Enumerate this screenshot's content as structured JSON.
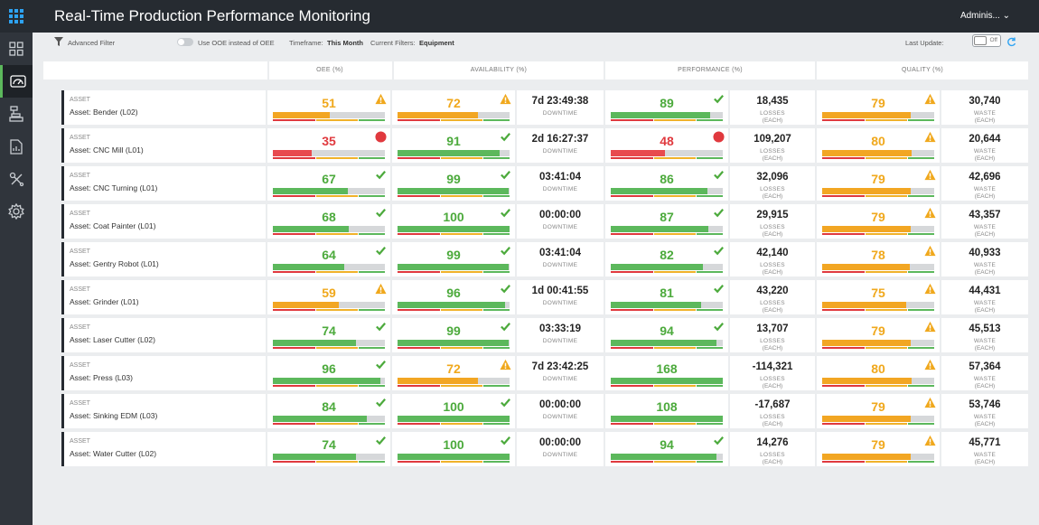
{
  "app": {
    "title": "Real-Time Production Performance Monitoring",
    "user": "Adminis... ⌄"
  },
  "filters": {
    "advanced_filter": "Advanced Filter",
    "ooe_toggle_label": "Use OOE instead of OEE",
    "timeframe_label": "Timeframe:",
    "timeframe_value": "This Month",
    "current_filters_label": "Current Filters:",
    "current_filters_value": "Equipment",
    "last_update_label": "Last Update:",
    "last_update_toggle": "Off"
  },
  "columns": {
    "oee": "OEE (%)",
    "availability": "AVAILABILITY (%)",
    "performance": "PERFORMANCE (%)",
    "quality": "QUALITY (%)"
  },
  "labels": {
    "asset_tag": "ASSET",
    "downtime": "DOWNTIME",
    "losses": "LOSSES",
    "waste": "WASTE",
    "each": "(EACH)"
  },
  "colors": {
    "green": "#5cb85c",
    "orange": "#f2a623",
    "red": "#e84a4f",
    "topbar": "#262b31",
    "active_nav": "#5cb85c"
  },
  "rows": [
    {
      "asset": "Asset: Bender (L02)",
      "oee": {
        "v": "51",
        "s": "warn"
      },
      "avail": {
        "v": "72",
        "s": "warn"
      },
      "downtime": "7d 23:49:38",
      "perf": {
        "v": "89",
        "s": "ok"
      },
      "losses": "18,435",
      "quality": {
        "v": "79",
        "s": "warn"
      },
      "waste": "30,740"
    },
    {
      "asset": "Asset: CNC Mill (L01)",
      "oee": {
        "v": "35",
        "s": "bad"
      },
      "avail": {
        "v": "91",
        "s": "ok"
      },
      "downtime": "2d 16:27:37",
      "perf": {
        "v": "48",
        "s": "bad"
      },
      "losses": "109,207",
      "quality": {
        "v": "80",
        "s": "warn"
      },
      "waste": "20,644"
    },
    {
      "asset": "Asset: CNC Turning (L01)",
      "oee": {
        "v": "67",
        "s": "ok"
      },
      "avail": {
        "v": "99",
        "s": "ok"
      },
      "downtime": "03:41:04",
      "perf": {
        "v": "86",
        "s": "ok"
      },
      "losses": "32,096",
      "quality": {
        "v": "79",
        "s": "warn"
      },
      "waste": "42,696"
    },
    {
      "asset": "Asset: Coat Painter (L01)",
      "oee": {
        "v": "68",
        "s": "ok"
      },
      "avail": {
        "v": "100",
        "s": "ok"
      },
      "downtime": "00:00:00",
      "perf": {
        "v": "87",
        "s": "ok"
      },
      "losses": "29,915",
      "quality": {
        "v": "79",
        "s": "warn"
      },
      "waste": "43,357"
    },
    {
      "asset": "Asset: Gentry Robot (L01)",
      "oee": {
        "v": "64",
        "s": "ok"
      },
      "avail": {
        "v": "99",
        "s": "ok"
      },
      "downtime": "03:41:04",
      "perf": {
        "v": "82",
        "s": "ok"
      },
      "losses": "42,140",
      "quality": {
        "v": "78",
        "s": "warn"
      },
      "waste": "40,933"
    },
    {
      "asset": "Asset: Grinder (L01)",
      "oee": {
        "v": "59",
        "s": "warn"
      },
      "avail": {
        "v": "96",
        "s": "ok"
      },
      "downtime": "1d 00:41:55",
      "perf": {
        "v": "81",
        "s": "ok"
      },
      "losses": "43,220",
      "quality": {
        "v": "75",
        "s": "warn"
      },
      "waste": "44,431"
    },
    {
      "asset": "Asset: Laser Cutter (L02)",
      "oee": {
        "v": "74",
        "s": "ok"
      },
      "avail": {
        "v": "99",
        "s": "ok"
      },
      "downtime": "03:33:19",
      "perf": {
        "v": "94",
        "s": "ok"
      },
      "losses": "13,707",
      "quality": {
        "v": "79",
        "s": "warn"
      },
      "waste": "45,513"
    },
    {
      "asset": "Asset: Press (L03)",
      "oee": {
        "v": "96",
        "s": "ok"
      },
      "avail": {
        "v": "72",
        "s": "warn"
      },
      "downtime": "7d 23:42:25",
      "perf": {
        "v": "168",
        "s": "none"
      },
      "losses": "-114,321",
      "quality": {
        "v": "80",
        "s": "warn"
      },
      "waste": "57,364"
    },
    {
      "asset": "Asset: Sinking EDM (L03)",
      "oee": {
        "v": "84",
        "s": "ok"
      },
      "avail": {
        "v": "100",
        "s": "ok"
      },
      "downtime": "00:00:00",
      "perf": {
        "v": "108",
        "s": "none"
      },
      "losses": "-17,687",
      "quality": {
        "v": "79",
        "s": "warn"
      },
      "waste": "53,746"
    },
    {
      "asset": "Asset: Water Cutter (L02)",
      "oee": {
        "v": "74",
        "s": "ok"
      },
      "avail": {
        "v": "100",
        "s": "ok"
      },
      "downtime": "00:00:00",
      "perf": {
        "v": "94",
        "s": "ok"
      },
      "losses": "14,276",
      "quality": {
        "v": "79",
        "s": "warn"
      },
      "waste": "45,771"
    }
  ]
}
